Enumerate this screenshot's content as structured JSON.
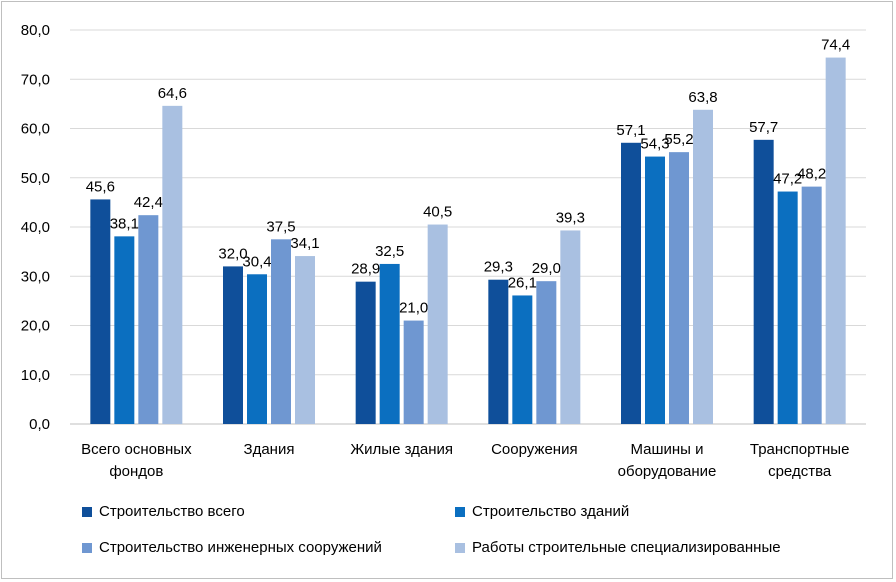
{
  "chart_data": {
    "type": "bar",
    "title": "",
    "xlabel": "",
    "ylabel": "",
    "ylim": [
      0,
      80
    ],
    "y_tick_step": 10,
    "y_tick_labels": [
      "0,0",
      "10,0",
      "20,0",
      "30,0",
      "40,0",
      "50,0",
      "60,0",
      "70,0",
      "80,0"
    ],
    "grid": true,
    "legend_position": "bottom",
    "categories": [
      [
        "Всего основных",
        "фондов"
      ],
      [
        "Здания"
      ],
      [
        "Жилые здания"
      ],
      [
        "Сооружения"
      ],
      [
        "Машины и",
        "оборудование"
      ],
      [
        "Транспортные",
        "средства"
      ]
    ],
    "series": [
      {
        "name": "Строительство всего",
        "color": "#0f4f9a",
        "values": [
          45.6,
          32.0,
          28.9,
          29.3,
          57.1,
          57.7
        ],
        "labels": [
          "45,6",
          "32,0",
          "28,9",
          "29,3",
          "57,1",
          "57,7"
        ]
      },
      {
        "name": "Строительство зданий",
        "color": "#0b6fc0",
        "values": [
          38.1,
          30.4,
          32.5,
          26.1,
          54.3,
          47.2
        ],
        "labels": [
          "38,1",
          "30,4",
          "32,5",
          "26,1",
          "54,3",
          "47,2"
        ]
      },
      {
        "name": "Строительство инженерных сооружений",
        "color": "#6f97d1",
        "values": [
          42.4,
          37.5,
          21.0,
          29.0,
          55.2,
          48.2
        ],
        "labels": [
          "42,4",
          "37,5",
          "21,0",
          "29,0",
          "55,2",
          "48,2"
        ]
      },
      {
        "name": "Работы строительные специализированные",
        "color": "#a9c0e1",
        "values": [
          64.6,
          34.1,
          40.5,
          39.3,
          63.8,
          74.4
        ],
        "labels": [
          "64,6",
          "34,1",
          "40,5",
          "39,3",
          "63,8",
          "74,4"
        ]
      }
    ]
  }
}
